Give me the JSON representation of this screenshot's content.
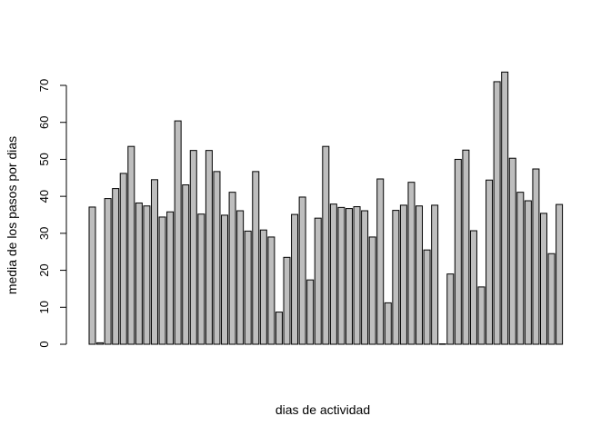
{
  "chart_data": {
    "type": "bar",
    "title": "",
    "xlabel": "dias de actividad",
    "ylabel": "media de los pasos por dias",
    "ylim": [
      0,
      70
    ],
    "yticks": [
      0,
      10,
      20,
      30,
      40,
      50,
      60,
      70
    ],
    "ytick_labels": [
      "0",
      "10",
      "20",
      "30",
      "40",
      "50",
      "60",
      "70"
    ],
    "bar_fill": "#bebebe",
    "bar_stroke": "#000000",
    "values": [
      37.1,
      0.4,
      39.4,
      42.1,
      46.2,
      53.5,
      38.2,
      37.4,
      44.5,
      34.4,
      35.8,
      60.4,
      43.1,
      52.4,
      35.2,
      52.4,
      46.7,
      34.9,
      41.1,
      36.1,
      30.6,
      46.7,
      30.9,
      29.0,
      8.7,
      23.5,
      35.1,
      39.8,
      17.4,
      34.1,
      53.5,
      37.9,
      37.0,
      36.7,
      37.2,
      36.1,
      29.0,
      44.7,
      11.2,
      36.2,
      37.6,
      43.8,
      37.4,
      25.5,
      37.6,
      0.1,
      19.0,
      50.0,
      52.5,
      30.7,
      15.5,
      44.4,
      71.0,
      73.6,
      50.3,
      41.1,
      38.8,
      47.4,
      35.4,
      24.5,
      37.8
    ]
  }
}
